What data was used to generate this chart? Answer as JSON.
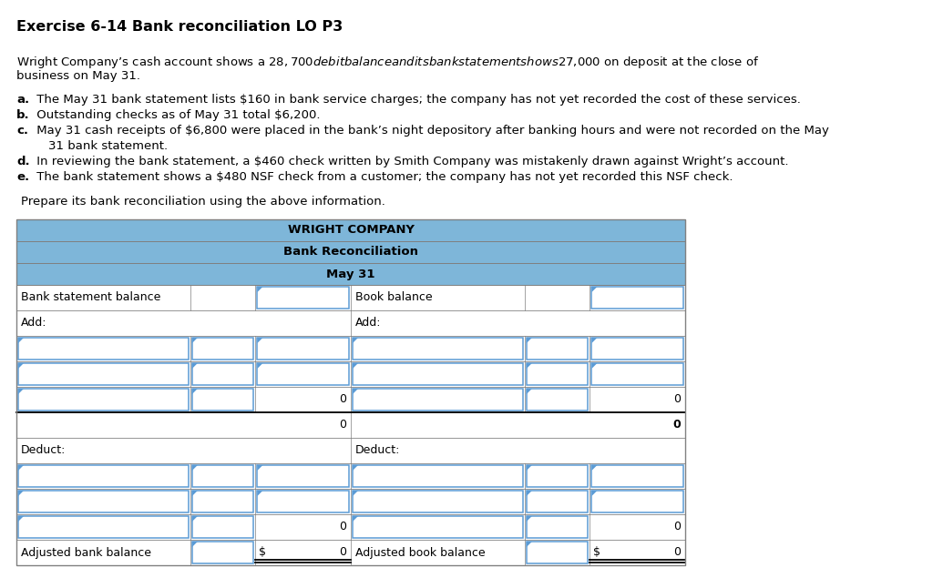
{
  "title": "Exercise 6-14 Bank reconciliation LO P3",
  "para1_line1": "Wright Company’s cash account shows a $28,700 debit balance and its bank statement shows $27,000 on deposit at the close of",
  "para1_line2": "business on May 31.",
  "bullet_items": [
    [
      "a.",
      " The May 31 bank statement lists $160 in bank service charges; the company has not yet recorded the cost of these services."
    ],
    [
      "b.",
      " Outstanding checks as of May 31 total $6,200."
    ],
    [
      "c.",
      " May 31 cash receipts of $6,800 were placed in the bank’s night depository after banking hours and were not recorded on the May"
    ],
    [
      "",
      "    31 bank statement."
    ],
    [
      "d.",
      " In reviewing the bank statement, a $460 check written by Smith Company was mistakenly drawn against Wright’s account."
    ],
    [
      "e.",
      " The bank statement shows a $480 NSF check from a customer; the company has not yet recorded this NSF check."
    ]
  ],
  "prepare_text": "Prepare its bank reconciliation using the above information.",
  "hdr1": "WRIGHT COMPANY",
  "hdr2": "Bank Reconciliation",
  "hdr3": "May 31",
  "header_bg": "#7EB6D9",
  "border_color": "#808080",
  "input_border_color": "#5B9BD5",
  "row_data": [
    {
      "left_label": "Bank statement balance",
      "right_label": "Book balance",
      "type": "balance_row"
    },
    {
      "left_label": "Add:",
      "right_label": "Add:",
      "type": "add_row"
    },
    {
      "left_label": "",
      "right_label": "",
      "type": "input_row"
    },
    {
      "left_label": "",
      "right_label": "",
      "type": "input_row"
    },
    {
      "left_label": "",
      "right_label": "",
      "type": "input_zero_row"
    },
    {
      "left_label": "",
      "right_label": "",
      "type": "subtotal_row"
    },
    {
      "left_label": "Deduct:",
      "right_label": "Deduct:",
      "type": "deduct_row"
    },
    {
      "left_label": "",
      "right_label": "",
      "type": "input_row"
    },
    {
      "left_label": "",
      "right_label": "",
      "type": "input_row"
    },
    {
      "left_label": "",
      "right_label": "",
      "type": "input_zero_row"
    },
    {
      "left_label": "Adjusted bank balance",
      "right_label": "Adjusted book balance",
      "type": "footer_row"
    }
  ]
}
